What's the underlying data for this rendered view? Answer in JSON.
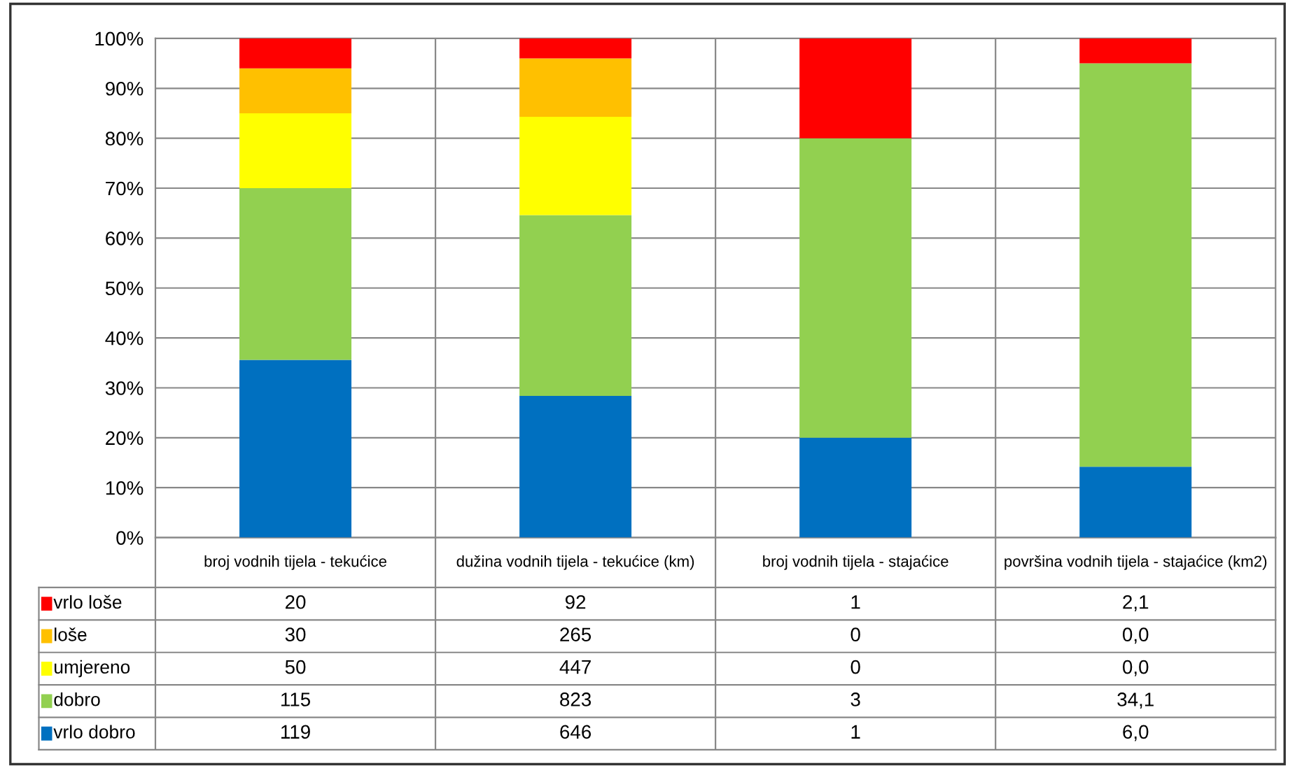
{
  "chart_data": {
    "type": "bar",
    "stacked": true,
    "categories": [
      "broj vodnih tijela - tekućice",
      "dužina vodnih tijela - tekućice (km)",
      "broj vodnih tijela - stajaćice",
      "površina vodnih tijela - stajaćice (km2)"
    ],
    "series": [
      {
        "name": "vrlo dobro",
        "color": "#0070c0",
        "values": [
          35.6,
          28.4,
          20.0,
          14.2
        ]
      },
      {
        "name": "dobro",
        "color": "#92d050",
        "values": [
          34.4,
          36.2,
          60.0,
          80.8
        ]
      },
      {
        "name": "umjereno",
        "color": "#ffff00",
        "values": [
          15.0,
          19.7,
          0.0,
          0.0
        ]
      },
      {
        "name": "loše",
        "color": "#ffc000",
        "values": [
          9.0,
          11.7,
          0.0,
          0.0
        ]
      },
      {
        "name": "vrlo loše",
        "color": "#ff0000",
        "values": [
          6.0,
          4.0,
          20.0,
          5.0
        ]
      }
    ],
    "annotations": [
      "20",
      "92",
      "1",
      "2,1",
      "30",
      "265",
      "0",
      "0,0",
      "50",
      "447",
      "0",
      "0,0",
      "115",
      "823",
      "3",
      "34,1",
      "119",
      "646",
      "1",
      "6,0"
    ],
    "ylim": [
      0,
      100
    ],
    "yticks": [
      {
        "value": 0,
        "label": "0%"
      },
      {
        "value": 10,
        "label": "10%"
      },
      {
        "value": 20,
        "label": "20%"
      },
      {
        "value": 30,
        "label": "30%"
      },
      {
        "value": 40,
        "label": "40%"
      },
      {
        "value": 50,
        "label": "50%"
      },
      {
        "value": 60,
        "label": "60%"
      },
      {
        "value": 70,
        "label": "70%"
      },
      {
        "value": 80,
        "label": "80%"
      },
      {
        "value": 90,
        "label": "90%"
      },
      {
        "value": 100,
        "label": "100%"
      }
    ],
    "grid": "y",
    "legend": "bottom"
  }
}
